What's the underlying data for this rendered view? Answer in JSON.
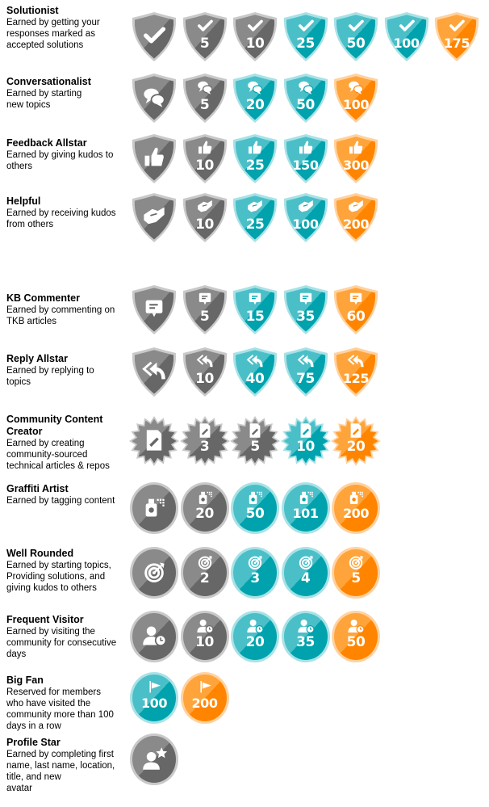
{
  "colors": {
    "gray": {
      "light": "#8a8a8a",
      "dark": "#676767",
      "rim": "#c9c9c9"
    },
    "teal": {
      "light": "#4bbfc8",
      "dark": "#00a3ad",
      "rim": "#a8e2e6"
    },
    "orange": {
      "light": "#ffa43a",
      "dark": "#ff8500",
      "rim": "#ffd2a0"
    }
  },
  "badge_groups": [
    {
      "title": "Solutionist",
      "description": "Earned by getting your\nresponses marked as\naccepted solutions",
      "shape": "shield",
      "icon": "check-icon",
      "levels": [
        {
          "value": "",
          "color": "gray"
        },
        {
          "value": "5",
          "color": "gray"
        },
        {
          "value": "10",
          "color": "gray"
        },
        {
          "value": "25",
          "color": "teal"
        },
        {
          "value": "50",
          "color": "teal"
        },
        {
          "value": "100",
          "color": "teal"
        },
        {
          "value": "175",
          "color": "orange"
        }
      ]
    },
    {
      "title": "Conversationalist",
      "description": "Earned by starting\nnew topics",
      "shape": "shield",
      "icon": "chat-bubbles-icon",
      "levels": [
        {
          "value": "",
          "color": "gray"
        },
        {
          "value": "5",
          "color": "gray"
        },
        {
          "value": "20",
          "color": "teal"
        },
        {
          "value": "50",
          "color": "teal"
        },
        {
          "value": "100",
          "color": "orange"
        }
      ]
    },
    {
      "title": "Feedback Allstar",
      "description": "Earned by giving kudos to\nothers",
      "shape": "shield",
      "icon": "thumbs-up-icon",
      "levels": [
        {
          "value": "",
          "color": "gray"
        },
        {
          "value": "10",
          "color": "gray"
        },
        {
          "value": "25",
          "color": "teal"
        },
        {
          "value": "150",
          "color": "teal"
        },
        {
          "value": "300",
          "color": "orange"
        }
      ]
    },
    {
      "title": "Helpful",
      "description": "Earned by receiving kudos\nfrom others",
      "shape": "shield",
      "icon": "handshake-icon",
      "levels": [
        {
          "value": "",
          "color": "gray"
        },
        {
          "value": "10",
          "color": "gray"
        },
        {
          "value": "25",
          "color": "teal"
        },
        {
          "value": "100",
          "color": "teal"
        },
        {
          "value": "200",
          "color": "orange"
        }
      ]
    },
    {
      "title": "KB Commenter",
      "description": "Earned by commenting on\nTKB articles",
      "shape": "shield",
      "icon": "comment-icon",
      "levels": [
        {
          "value": "",
          "color": "gray"
        },
        {
          "value": "5",
          "color": "gray"
        },
        {
          "value": "15",
          "color": "teal"
        },
        {
          "value": "35",
          "color": "teal"
        },
        {
          "value": "60",
          "color": "orange"
        }
      ]
    },
    {
      "title": "Reply Allstar",
      "description": "Earned by replying to\n topics",
      "shape": "shield",
      "icon": "reply-all-icon",
      "levels": [
        {
          "value": "",
          "color": "gray"
        },
        {
          "value": "10",
          "color": "gray"
        },
        {
          "value": "40",
          "color": "teal"
        },
        {
          "value": "75",
          "color": "teal"
        },
        {
          "value": "125",
          "color": "orange"
        }
      ]
    },
    {
      "title": "Community Content\nCreator",
      "description": "Earned by creating\ncommunity-sourced\ntechnical articles & repos",
      "shape": "burst",
      "icon": "document-pencil-icon",
      "levels": [
        {
          "value": "",
          "color": "gray"
        },
        {
          "value": "3",
          "color": "gray"
        },
        {
          "value": "5",
          "color": "gray"
        },
        {
          "value": "10",
          "color": "teal"
        },
        {
          "value": "20",
          "color": "orange"
        }
      ]
    },
    {
      "title": "Graffiti Artist",
      "description": "Earned by tagging content",
      "shape": "circle",
      "icon": "spray-can-icon",
      "levels": [
        {
          "value": "",
          "color": "gray"
        },
        {
          "value": "20",
          "color": "gray"
        },
        {
          "value": "50",
          "color": "teal"
        },
        {
          "value": "101",
          "color": "teal"
        },
        {
          "value": "200",
          "color": "orange"
        }
      ]
    },
    {
      "title": "Well Rounded",
      "description": "Earned by starting topics,\nProviding solutions, and\ngiving kudos to others",
      "shape": "circle",
      "icon": "target-icon",
      "levels": [
        {
          "value": "",
          "color": "gray"
        },
        {
          "value": "2",
          "color": "gray"
        },
        {
          "value": "3",
          "color": "teal"
        },
        {
          "value": "4",
          "color": "teal"
        },
        {
          "value": "5",
          "color": "orange"
        }
      ]
    },
    {
      "title": "Frequent Visitor",
      "description": "Earned by visiting the\ncommunity for consecutive\ndays",
      "shape": "circle",
      "icon": "user-clock-icon",
      "levels": [
        {
          "value": "",
          "color": "gray"
        },
        {
          "value": "10",
          "color": "gray"
        },
        {
          "value": "20",
          "color": "teal"
        },
        {
          "value": "35",
          "color": "teal"
        },
        {
          "value": "50",
          "color": "orange"
        }
      ]
    },
    {
      "title": "Big Fan",
      "description": "Reserved for members\nwho have visited the\ncommunity more than 100\n days in a row",
      "shape": "circle",
      "icon": "flag-icon",
      "levels": [
        {
          "value": "100",
          "color": "teal"
        },
        {
          "value": "200",
          "color": "orange"
        }
      ]
    },
    {
      "title": "Profile Star",
      "description": "Earned by completing first\nname, last name, location,\ntitle, and new\navatar",
      "shape": "circle",
      "icon": "user-star-icon",
      "levels": [
        {
          "value": "",
          "color": "gray"
        }
      ]
    }
  ]
}
